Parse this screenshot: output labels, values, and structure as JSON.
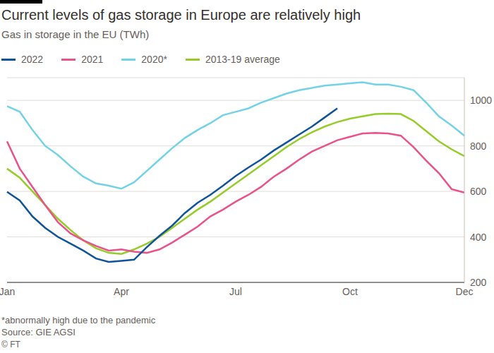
{
  "chart_data": {
    "type": "line",
    "title": "Current levels of gas storage in Europe are relatively high",
    "subtitle": "Gas in storage in the EU (TWh)",
    "footnote": "*abnormally high due to the pandemic",
    "source": "Source: GIE AGSI",
    "credit": "© FT",
    "categories": [
      "Jan",
      null,
      null,
      null,
      null,
      null,
      null,
      null,
      null,
      "Apr",
      null,
      null,
      null,
      null,
      null,
      null,
      null,
      null,
      "Jul",
      null,
      null,
      null,
      null,
      null,
      null,
      null,
      null,
      "Oct",
      null,
      null,
      null,
      null,
      null,
      null,
      null,
      null,
      "Dec"
    ],
    "series": [
      {
        "name": "2022",
        "color": "#0f5499",
        "values": [
          598,
          560,
          490,
          440,
          400,
          370,
          340,
          305,
          290,
          295,
          300,
          355,
          405,
          450,
          505,
          550,
          585,
          625,
          668,
          705,
          740,
          780,
          815,
          850,
          885,
          925,
          965,
          null,
          null,
          null,
          null,
          null,
          null,
          null,
          null,
          null,
          null
        ]
      },
      {
        "name": "2021",
        "color": "#e9528a",
        "values": [
          820,
          700,
          620,
          540,
          465,
          415,
          385,
          360,
          340,
          345,
          335,
          330,
          345,
          375,
          410,
          445,
          490,
          520,
          555,
          585,
          620,
          665,
          700,
          740,
          775,
          800,
          825,
          840,
          855,
          857,
          855,
          845,
          795,
          735,
          680,
          610,
          595
        ]
      },
      {
        "name": "2020*",
        "color": "#72d3e6",
        "values": [
          975,
          950,
          870,
          800,
          760,
          710,
          665,
          635,
          625,
          612,
          640,
          690,
          740,
          790,
          835,
          870,
          900,
          935,
          950,
          965,
          990,
          1010,
          1030,
          1045,
          1055,
          1065,
          1070,
          1075,
          1080,
          1070,
          1070,
          1060,
          1045,
          990,
          930,
          890,
          845
        ]
      },
      {
        "name": "2013-19 average",
        "color": "#96cc28",
        "values": [
          700,
          660,
          600,
          540,
          480,
          430,
          385,
          350,
          330,
          325,
          345,
          370,
          400,
          440,
          480,
          520,
          555,
          595,
          635,
          675,
          715,
          755,
          795,
          830,
          860,
          885,
          905,
          920,
          930,
          940,
          942,
          940,
          910,
          865,
          820,
          785,
          755
        ]
      }
    ],
    "ylim": [
      200,
      1100
    ],
    "yticks": [
      200,
      400,
      600,
      800,
      1000
    ],
    "grid": true,
    "legend": "top"
  }
}
